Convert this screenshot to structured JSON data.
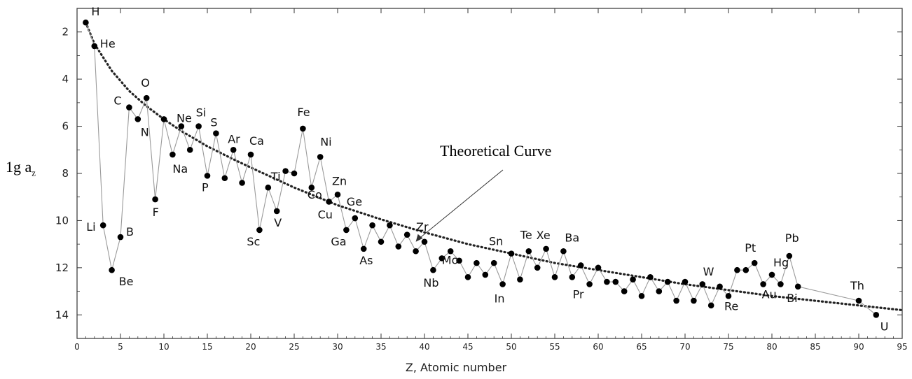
{
  "chart_data": {
    "type": "line",
    "title": "",
    "xlabel": "Z, Atomic number",
    "ylabel_main": "1g a",
    "ylabel_sub": "z",
    "xlim": [
      0,
      95
    ],
    "ylim": [
      15,
      1
    ],
    "y_inverted": true,
    "xticks": [
      0,
      5,
      10,
      15,
      20,
      25,
      30,
      35,
      40,
      45,
      50,
      55,
      60,
      65,
      70,
      75,
      80,
      85,
      90,
      95
    ],
    "yticks": [
      2,
      4,
      6,
      8,
      10,
      12,
      14
    ],
    "grid": false,
    "annotation": {
      "text": "Theoretical Curve",
      "arrow_to": [
        39,
        10.9
      ]
    },
    "series": [
      {
        "style": "line-with-markers",
        "color": "#000000",
        "line_color": "#9a9a9a",
        "x": [
          1,
          2,
          3,
          4,
          5,
          6,
          7,
          8,
          9,
          10,
          11,
          12,
          13,
          14,
          15,
          16,
          17,
          18,
          19,
          20,
          21,
          22,
          23,
          24,
          25,
          26,
          27,
          28,
          29,
          30,
          31,
          32,
          33,
          34,
          35,
          36,
          37,
          38,
          39,
          40,
          41,
          42,
          43,
          44,
          45,
          46,
          47,
          48,
          49,
          50,
          51,
          52,
          53,
          54,
          55,
          56,
          57,
          58,
          59,
          60,
          61,
          62,
          63,
          64,
          65,
          66,
          67,
          68,
          69,
          70,
          71,
          72,
          73,
          74,
          75,
          76,
          77,
          78,
          79,
          80,
          81,
          82,
          83,
          90,
          92
        ],
        "y": [
          1.6,
          2.6,
          10.2,
          12.1,
          10.7,
          5.2,
          5.7,
          4.8,
          9.1,
          5.7,
          7.2,
          6.0,
          7.0,
          6.0,
          8.1,
          6.3,
          8.2,
          7.0,
          8.4,
          7.2,
          10.4,
          8.6,
          9.6,
          7.9,
          8.0,
          6.1,
          8.6,
          7.3,
          9.2,
          8.9,
          10.4,
          9.9,
          11.2,
          10.2,
          10.9,
          10.2,
          11.1,
          10.6,
          11.3,
          10.9,
          12.1,
          11.6,
          11.3,
          11.7,
          12.4,
          11.8,
          12.3,
          11.8,
          12.7,
          11.4,
          12.5,
          11.3,
          12.0,
          11.2,
          12.4,
          11.3,
          12.4,
          11.9,
          12.7,
          12.0,
          12.6,
          12.6,
          13.0,
          12.5,
          13.2,
          12.4,
          13.0,
          12.6,
          13.4,
          12.6,
          13.4,
          12.7,
          13.6,
          12.8,
          13.2,
          12.1,
          12.1,
          11.8,
          12.7,
          12.3,
          12.7,
          11.5,
          12.8,
          13.4,
          14.0
        ]
      },
      {
        "style": "dotted-curve",
        "color": "#222222",
        "x": [
          1,
          2,
          4,
          6,
          8,
          10,
          12,
          15,
          18,
          20,
          25,
          30,
          35,
          40,
          45,
          50,
          55,
          60,
          65,
          70,
          75,
          80,
          85,
          90,
          95
        ],
        "y": [
          1.6,
          2.5,
          3.65,
          4.5,
          5.15,
          5.7,
          6.2,
          6.85,
          7.4,
          7.75,
          8.6,
          9.35,
          9.95,
          10.5,
          11.0,
          11.4,
          11.8,
          12.1,
          12.4,
          12.7,
          12.95,
          13.2,
          13.4,
          13.6,
          13.8
        ]
      }
    ],
    "labels": [
      {
        "text": "H",
        "x": 1
      },
      {
        "text": "He",
        "x": 2
      },
      {
        "text": "Li",
        "x": 3
      },
      {
        "text": "Be",
        "x": 4
      },
      {
        "text": "B",
        "x": 5
      },
      {
        "text": "C",
        "x": 6
      },
      {
        "text": "N",
        "x": 7
      },
      {
        "text": "O",
        "x": 8
      },
      {
        "text": "F",
        "x": 9
      },
      {
        "text": "Ne",
        "x": 10
      },
      {
        "text": "Na",
        "x": 11
      },
      {
        "text": "Si",
        "x": 14
      },
      {
        "text": "P",
        "x": 15
      },
      {
        "text": "S",
        "x": 16
      },
      {
        "text": "Ar",
        "x": 18
      },
      {
        "text": "Ca",
        "x": 20
      },
      {
        "text": "Sc",
        "x": 21
      },
      {
        "text": "Ti",
        "x": 22
      },
      {
        "text": "V",
        "x": 23
      },
      {
        "text": "Fe",
        "x": 26
      },
      {
        "text": "Co",
        "x": 27
      },
      {
        "text": "Ni",
        "x": 28
      },
      {
        "text": "Cu",
        "x": 29
      },
      {
        "text": "Zn",
        "x": 30
      },
      {
        "text": "Ga",
        "x": 31
      },
      {
        "text": "Ge",
        "x": 32
      },
      {
        "text": "As",
        "x": 33
      },
      {
        "text": "Zr",
        "x": 40
      },
      {
        "text": "Nb",
        "x": 41
      },
      {
        "text": "Mo",
        "x": 42
      },
      {
        "text": "In",
        "x": 49
      },
      {
        "text": "Sn",
        "x": 50
      },
      {
        "text": "Te",
        "x": 52
      },
      {
        "text": "Xe",
        "x": 54
      },
      {
        "text": "Ba",
        "x": 56
      },
      {
        "text": "Pr",
        "x": 59
      },
      {
        "text": "W",
        "x": 74
      },
      {
        "text": "Re",
        "x": 75
      },
      {
        "text": "Pt",
        "x": 78
      },
      {
        "text": "Au",
        "x": 79
      },
      {
        "text": "Hg",
        "x": 80
      },
      {
        "text": "Pb",
        "x": 82
      },
      {
        "text": "Bi",
        "x": 83
      },
      {
        "text": "Th",
        "x": 90
      },
      {
        "text": "U",
        "x": 92
      }
    ]
  }
}
